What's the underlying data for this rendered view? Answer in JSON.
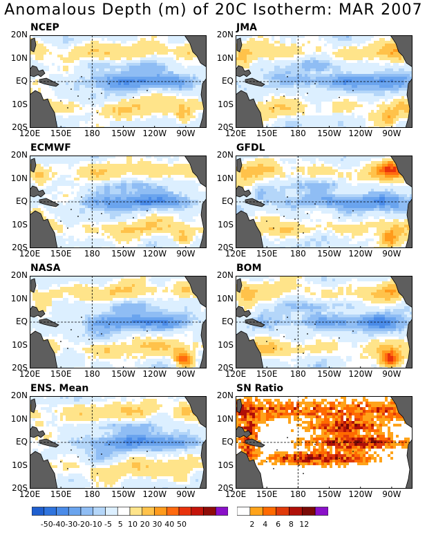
{
  "title": "Anomalous Depth (m) of 20C Isotherm: MAR 2007",
  "chart_data": {
    "type": "heatmap",
    "variable": "Anomalous Depth (m) of 20C Isotherm",
    "period": "MAR 2007",
    "x_ticks": [
      "120E",
      "150E",
      "180",
      "150W",
      "120W",
      "90W"
    ],
    "y_ticks": [
      "20N",
      "10N",
      "EQ",
      "10S",
      "20S"
    ],
    "x_range_lon_east": [
      120,
      290
    ],
    "y_range_lat": [
      -20,
      20
    ],
    "panels": [
      {
        "name": "NCEP",
        "kind": "anomaly",
        "peak_positive": 20,
        "peak_negative": -30
      },
      {
        "name": "JMA",
        "kind": "anomaly",
        "peak_positive": 20,
        "peak_negative": -30
      },
      {
        "name": "ECMWF",
        "kind": "anomaly",
        "peak_positive": 30,
        "peak_negative": -40
      },
      {
        "name": "GFDL",
        "kind": "anomaly",
        "peak_positive": 40,
        "peak_negative": -30
      },
      {
        "name": "NASA",
        "kind": "anomaly",
        "peak_positive": 50,
        "peak_negative": -30
      },
      {
        "name": "BOM",
        "kind": "anomaly",
        "peak_positive": 50,
        "peak_negative": -30
      },
      {
        "name": "ENS. Mean",
        "kind": "anomaly",
        "peak_positive": 20,
        "peak_negative": -30
      },
      {
        "name": "SN Ratio",
        "kind": "ratio",
        "peak_positive": 12
      }
    ],
    "anomaly_colorbar": {
      "labels": [
        "-50",
        "-40",
        "-30",
        "-20",
        "-10",
        "-5",
        "5",
        "10",
        "20",
        "30",
        "40",
        "50"
      ],
      "colors": [
        "#1f5fcf",
        "#2f74de",
        "#4a8be8",
        "#6aa4ee",
        "#8fbdf4",
        "#b4d6f9",
        "#dcefff",
        "#ffffff",
        "#ffe48a",
        "#ffc24a",
        "#ff9b1c",
        "#ff6a0f",
        "#e8320c",
        "#c4140a",
        "#8e0c08",
        "#8a10c8"
      ]
    },
    "ratio_colorbar": {
      "labels": [
        "2",
        "4",
        "6",
        "8",
        "12"
      ],
      "colors": [
        "#ffffff",
        "#ffa31a",
        "#ff6a00",
        "#e03a0a",
        "#b01008",
        "#7a0a06",
        "#8a10c8"
      ]
    }
  },
  "map": {
    "land_color": "#5e5e5e",
    "coast_color": "#000000",
    "frame_color": "#000000"
  }
}
